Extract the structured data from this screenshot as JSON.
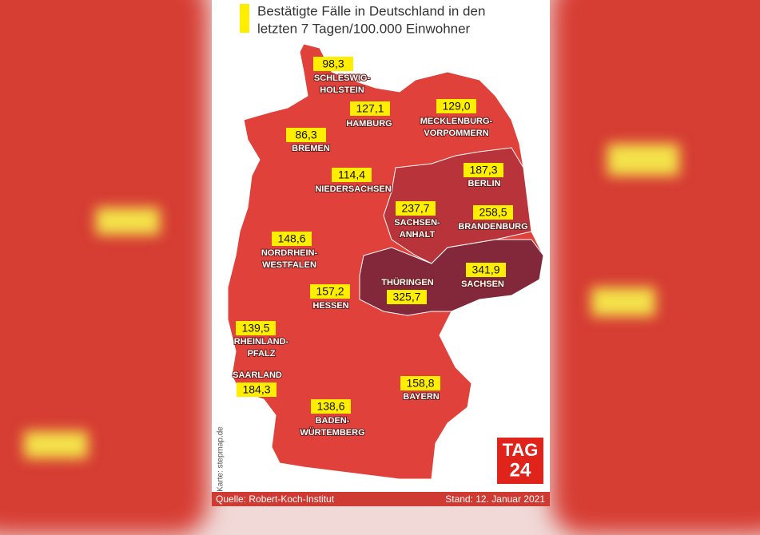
{
  "header": {
    "title_lines": [
      "Bestätigte Fälle in Deutschland in den",
      "letzten 7 Tagen/100.000 Einwohner"
    ]
  },
  "map": {
    "regions": [
      {
        "name_lines": [
          "SCHLESWIG-",
          "HOLSTEIN"
        ],
        "value": "98,3"
      },
      {
        "name_lines": [
          "HAMBURG"
        ],
        "value": "127,1"
      },
      {
        "name_lines": [
          "MECKLENBURG-",
          "VORPOMMERN"
        ],
        "value": "129,0"
      },
      {
        "name_lines": [
          "BREMEN"
        ],
        "value": "86,3"
      },
      {
        "name_lines": [
          "NIEDERSACHSEN"
        ],
        "value": "114,4"
      },
      {
        "name_lines": [
          "BERLIN"
        ],
        "value": "187,3"
      },
      {
        "name_lines": [
          "SACHSEN-",
          "ANHALT"
        ],
        "value": "237,7"
      },
      {
        "name_lines": [
          "BRANDENBURG"
        ],
        "value": "258,5"
      },
      {
        "name_lines": [
          "NORDRHEIN-",
          "WESTFALEN"
        ],
        "value": "148,6"
      },
      {
        "name_lines": [
          "THÜRINGEN"
        ],
        "value": "325,7"
      },
      {
        "name_lines": [
          "SACHSEN"
        ],
        "value": "341,9"
      },
      {
        "name_lines": [
          "HESSEN"
        ],
        "value": "157,2"
      },
      {
        "name_lines": [
          "RHEINLAND-",
          "PFALZ"
        ],
        "value": "139,5"
      },
      {
        "name_lines": [
          "SAARLAND"
        ],
        "value": "184,3"
      },
      {
        "name_lines": [
          "BAYERN"
        ],
        "value": "158,8"
      },
      {
        "name_lines": [
          "BADEN-",
          "WÜRTEMBERG"
        ],
        "value": "138,6"
      }
    ],
    "credit": "Karte: stepmap.de"
  },
  "logo": {
    "top": "TAG",
    "bottom": "24"
  },
  "footer": {
    "source": "Quelle: Robert-Koch-Institut",
    "date": "Stand: 12. Januar 2021"
  }
}
